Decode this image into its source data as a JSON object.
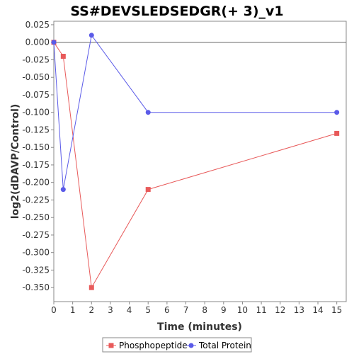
{
  "chart_data": {
    "type": "line",
    "title": "SS#DEVSLEDSEDGR(+ 3)_v1",
    "xlabel": "Time (minutes)",
    "ylabel": "log2(dDAVP/Control)",
    "xlim": [
      0,
      15.5
    ],
    "ylim": [
      -0.37,
      0.03
    ],
    "x_ticks": [
      0,
      1,
      2,
      3,
      4,
      5,
      6,
      7,
      8,
      9,
      10,
      11,
      12,
      13,
      14,
      15
    ],
    "y_ticks": [
      0.025,
      0.0,
      -0.025,
      -0.05,
      -0.075,
      -0.1,
      -0.125,
      -0.15,
      -0.175,
      -0.2,
      -0.225,
      -0.25,
      -0.275,
      -0.3,
      -0.325,
      -0.35
    ],
    "y_tick_labels": [
      "0.025",
      "0.000",
      "-0.025",
      "-0.050",
      "-0.075",
      "-0.100",
      "-0.125",
      "-0.150",
      "-0.175",
      "-0.200",
      "-0.225",
      "-0.250",
      "-0.275",
      "-0.300",
      "-0.325",
      "-0.350"
    ],
    "zero_line": true,
    "grid": false,
    "legend_position": "bottom",
    "series": [
      {
        "name": "Phosphopeptide",
        "color": "#e85a5a",
        "marker": "square",
        "x": [
          0,
          0.5,
          2,
          5,
          15
        ],
        "y": [
          0.0,
          -0.02,
          -0.35,
          -0.21,
          -0.13
        ]
      },
      {
        "name": "Total Protein",
        "color": "#5a5ae8",
        "marker": "circle",
        "x": [
          0,
          0.5,
          2,
          5,
          15
        ],
        "y": [
          0.0,
          -0.21,
          0.01,
          -0.1,
          -0.1
        ]
      }
    ]
  }
}
